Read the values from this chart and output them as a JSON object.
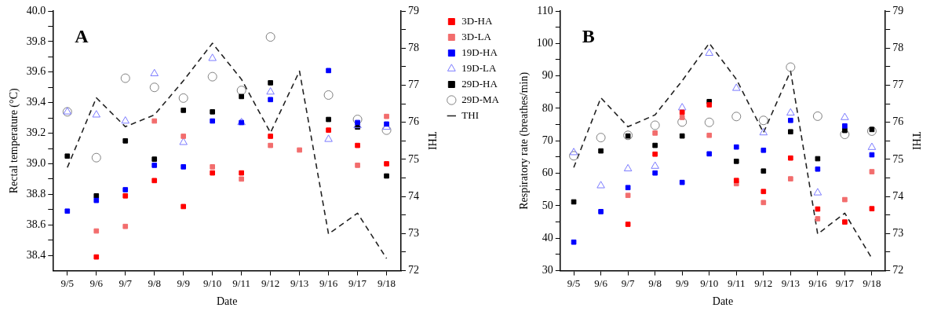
{
  "chart_data": [
    {
      "type": "scatter",
      "xlabel": "Date",
      "ylabel": "Rectal temperature (°C)",
      "y2label": "THI",
      "annotations": [
        "A"
      ],
      "categories": [
        "9/5",
        "9/6",
        "9/7",
        "9/8",
        "9/9",
        "9/10",
        "9/11",
        "9/12",
        "9/13",
        "9/16",
        "9/17",
        "9/18"
      ],
      "ylim": [
        38.3,
        40.0
      ],
      "yticks": [
        {
          "value": 38.4,
          "label": "38.4"
        },
        {
          "value": 38.5,
          "label": null
        },
        {
          "value": 38.6,
          "label": "38.6"
        },
        {
          "value": 38.7,
          "label": null
        },
        {
          "value": 38.8,
          "label": "38.8"
        },
        {
          "value": 38.9,
          "label": null
        },
        {
          "value": 39.0,
          "label": "39.0"
        },
        {
          "value": 39.1,
          "label": null
        },
        {
          "value": 39.2,
          "label": "39.2"
        },
        {
          "value": 39.3,
          "label": null
        },
        {
          "value": 39.4,
          "label": "39.4"
        },
        {
          "value": 39.5,
          "label": null
        },
        {
          "value": 39.6,
          "label": "39.6"
        },
        {
          "value": 39.7,
          "label": null
        },
        {
          "value": 39.8,
          "label": "39.8"
        },
        {
          "value": 39.9,
          "label": null
        },
        {
          "value": 40.0,
          "label": "40.0"
        }
      ],
      "y2lim": [
        72,
        79
      ],
      "y2ticks": [
        72,
        {
          "value": 72.5,
          "label": null
        },
        73,
        {
          "value": 73.5,
          "label": null
        },
        74,
        {
          "value": 74.5,
          "label": null
        },
        75,
        {
          "value": 75.5,
          "label": null
        },
        76,
        {
          "value": 76.5,
          "label": null
        },
        77,
        {
          "value": 77.5,
          "label": null
        },
        78,
        {
          "value": 78.5,
          "label": null
        },
        79
      ],
      "grid": false,
      "legend": "right",
      "series": [
        {
          "name": "3D-HA",
          "color": "#ff0000",
          "marker": "square",
          "values": [
            null,
            38.39,
            38.79,
            38.89,
            38.72,
            38.94,
            38.94,
            39.18,
            null,
            39.22,
            39.12,
            39.0
          ]
        },
        {
          "name": "3D-LA",
          "color": "#f26d6d",
          "marker": "square",
          "values": [
            null,
            38.56,
            38.59,
            39.28,
            39.18,
            38.98,
            38.9,
            39.12,
            39.09,
            null,
            38.99,
            39.31
          ]
        },
        {
          "name": "19D-HA",
          "color": "#0000ff",
          "marker": "square",
          "values": [
            38.69,
            38.76,
            38.83,
            38.99,
            38.98,
            39.28,
            39.27,
            39.42,
            null,
            39.61,
            39.27,
            39.26
          ]
        },
        {
          "name": "19D-LA",
          "color": "#7b7bff",
          "marker": "triangle",
          "values": [
            39.34,
            39.32,
            39.28,
            39.59,
            39.14,
            39.69,
            39.27,
            39.47,
            null,
            39.16,
            39.25,
            39.24
          ]
        },
        {
          "name": "29D-HA",
          "color": "#000000",
          "marker": "square",
          "values": [
            39.05,
            38.79,
            39.15,
            39.03,
            39.35,
            39.34,
            39.44,
            39.53,
            null,
            39.29,
            39.24,
            38.92
          ]
        },
        {
          "name": "29D-MA",
          "color": "#808080",
          "marker": "circle",
          "values": [
            39.34,
            39.04,
            39.56,
            39.5,
            39.43,
            39.57,
            39.48,
            39.83,
            null,
            39.45,
            39.29,
            39.22
          ]
        },
        {
          "name": "THI",
          "type": "line",
          "axis": "y2",
          "color": "#222222",
          "marker": "none",
          "line_style": "dashed",
          "values": [
            74.78,
            76.66,
            75.88,
            76.2,
            77.12,
            78.13,
            77.16,
            75.72,
            77.38,
            72.99,
            73.55,
            72.33
          ]
        }
      ]
    },
    {
      "type": "scatter",
      "xlabel": "Date",
      "ylabel": "Respiratory rate (breathes/min)",
      "y2label": "THI",
      "annotations": [
        "B"
      ],
      "categories": [
        "9/5",
        "9/6",
        "9/7",
        "9/8",
        "9/9",
        "9/10",
        "9/11",
        "9/12",
        "9/13",
        "9/16",
        "9/17",
        "9/18"
      ],
      "ylim": [
        30,
        110
      ],
      "yticks": [
        30,
        {
          "value": 35,
          "label": null
        },
        40,
        {
          "value": 45,
          "label": null
        },
        50,
        {
          "value": 55,
          "label": null
        },
        60,
        {
          "value": 65,
          "label": null
        },
        70,
        {
          "value": 75,
          "label": null
        },
        80,
        {
          "value": 85,
          "label": null
        },
        90,
        {
          "value": 95,
          "label": null
        },
        100,
        {
          "value": 105,
          "label": null
        },
        110
      ],
      "y2lim": [
        72,
        79
      ],
      "y2ticks": [
        72,
        {
          "value": 72.5,
          "label": null
        },
        73,
        {
          "value": 73.5,
          "label": null
        },
        74,
        {
          "value": 74.5,
          "label": null
        },
        75,
        {
          "value": 75.5,
          "label": null
        },
        76,
        {
          "value": 76.5,
          "label": null
        },
        77,
        {
          "value": 77.5,
          "label": null
        },
        78,
        {
          "value": 78.5,
          "label": null
        },
        79
      ],
      "grid": false,
      "series": [
        {
          "color": "#ff0000",
          "marker": "square",
          "values": [
            null,
            null,
            44.3,
            65.9,
            78.8,
            81.1,
            57.8,
            54.4,
            64.7,
            49.0,
            45.0,
            49.1
          ]
        },
        {
          "color": "#f26d6d",
          "marker": "square",
          "values": [
            null,
            null,
            53.2,
            72.4,
            77.2,
            71.7,
            56.8,
            51.0,
            58.3,
            46.0,
            51.9,
            60.5
          ]
        },
        {
          "color": "#0000ff",
          "marker": "square",
          "values": [
            38.8,
            48.2,
            55.6,
            60.1,
            57.2,
            66.0,
            68.1,
            67.1,
            76.3,
            61.3,
            74.6,
            65.7
          ]
        },
        {
          "color": "#7b7bff",
          "marker": "triangle",
          "values": [
            66.4,
            56.2,
            61.4,
            62.2,
            80.2,
            97.0,
            86.2,
            72.5,
            78.6,
            54.0,
            77.2,
            68.0
          ]
        },
        {
          "color": "#000000",
          "marker": "square",
          "values": [
            51.2,
            66.9,
            71.5,
            68.6,
            71.5,
            82.1,
            63.7,
            60.7,
            72.8,
            64.5,
            73.2,
            73.5
          ]
        },
        {
          "color": "#808080",
          "marker": "circle",
          "values": [
            65.4,
            71.0,
            71.7,
            74.8,
            75.8,
            75.7,
            77.5,
            76.3,
            92.7,
            77.6,
            72.0,
            73.0
          ]
        },
        {
          "type": "line",
          "axis": "y2",
          "color": "#222222",
          "marker": "none",
          "line_style": "dashed",
          "values": [
            74.78,
            76.66,
            75.88,
            76.2,
            77.12,
            78.13,
            77.16,
            75.72,
            77.38,
            72.99,
            73.55,
            72.33
          ]
        }
      ]
    }
  ]
}
